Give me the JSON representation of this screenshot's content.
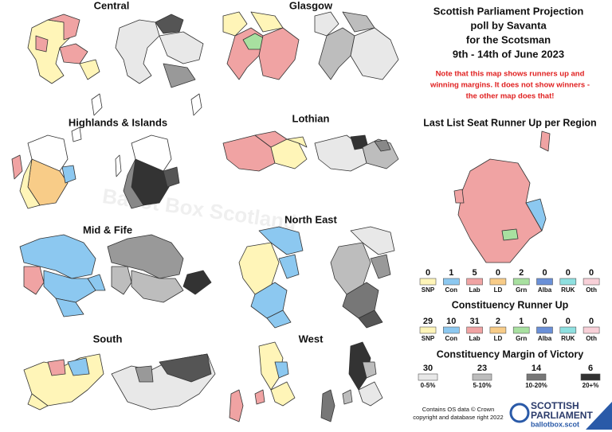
{
  "header": {
    "title_lines": [
      "Scottish Parliament Projection",
      "poll by Savanta",
      "for the Scotsman",
      "9th - 14th of June 2023"
    ],
    "note_lines": [
      "Note that this map shows runners up and",
      "winning margins. It does not show winners -",
      "the other map does that!"
    ]
  },
  "regions": [
    {
      "name": "Central"
    },
    {
      "name": "Glasgow"
    },
    {
      "name": "Highlands & Islands"
    },
    {
      "name": "Lothian"
    },
    {
      "name": "Mid & Fife"
    },
    {
      "name": "North East"
    },
    {
      "name": "South"
    },
    {
      "name": "West"
    }
  ],
  "list_runner_up": {
    "title": "Last List Seat Runner Up per Region",
    "items": [
      {
        "value": 0,
        "label": "SNP",
        "color": "#fff5b8"
      },
      {
        "value": 1,
        "label": "Con",
        "color": "#8cc8f0"
      },
      {
        "value": 5,
        "label": "Lab",
        "color": "#f0a3a3"
      },
      {
        "value": 0,
        "label": "LD",
        "color": "#f8cc88"
      },
      {
        "value": 2,
        "label": "Grn",
        "color": "#a8e0a0"
      },
      {
        "value": 0,
        "label": "Alba",
        "color": "#6a90d8"
      },
      {
        "value": 0,
        "label": "RUK",
        "color": "#8ee0e0"
      },
      {
        "value": 0,
        "label": "Oth",
        "color": "#f8d0d8"
      }
    ]
  },
  "constituency_runner_up": {
    "title": "Constituency Runner Up",
    "items": [
      {
        "value": 29,
        "label": "SNP",
        "color": "#fff5b8"
      },
      {
        "value": 10,
        "label": "Con",
        "color": "#8cc8f0"
      },
      {
        "value": 31,
        "label": "Lab",
        "color": "#f0a3a3"
      },
      {
        "value": 2,
        "label": "LD",
        "color": "#f8cc88"
      },
      {
        "value": 1,
        "label": "Grn",
        "color": "#a8e0a0"
      },
      {
        "value": 0,
        "label": "Alba",
        "color": "#6a90d8"
      },
      {
        "value": 0,
        "label": "RUK",
        "color": "#8ee0e0"
      },
      {
        "value": 0,
        "label": "Oth",
        "color": "#f8d0d8"
      }
    ]
  },
  "margin_of_victory": {
    "title": "Constituency Margin of Victory",
    "items": [
      {
        "value": 30,
        "label": "0-5%",
        "color": "#e8e8e8"
      },
      {
        "value": 23,
        "label": "5-10%",
        "color": "#bdbdbd"
      },
      {
        "value": 14,
        "label": "10-20%",
        "color": "#777777"
      },
      {
        "value": 6,
        "label": "20+%",
        "color": "#333333"
      }
    ]
  },
  "footer": {
    "credit_lines": [
      "Contains OS data © Crown",
      "copyright and database right 2022"
    ],
    "logo_lines": [
      "SCOTTISH",
      "PARLIAMENT",
      "ballotbox.scot"
    ]
  },
  "watermark": "Ballot Box Scotland"
}
